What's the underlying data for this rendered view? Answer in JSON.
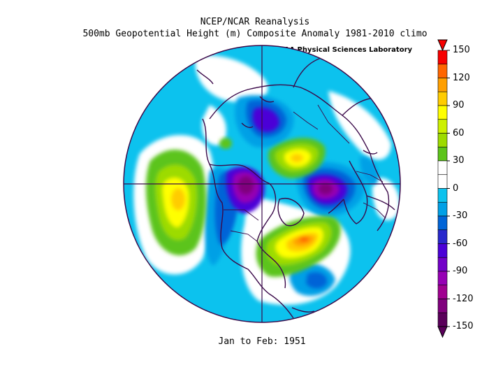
{
  "titles": {
    "line1": "NCEP/NCAR Reanalysis",
    "line2": "500mb Geopotential Height (m) Composite Anomaly 1981-2010 climo",
    "credit": "NOAA Physical Sciences Laboratory",
    "period": "Jan to Feb: 1951"
  },
  "colorbar": {
    "labels": [
      "150",
      "120",
      "90",
      "60",
      "30",
      "0",
      "-30",
      "-60",
      "-90",
      "-120",
      "-150"
    ],
    "colors": [
      "#f70000",
      "#ff6600",
      "#ff9f00",
      "#ffcc00",
      "#ffff00",
      "#cdf000",
      "#9ddb00",
      "#5cc41a",
      "#ffffff",
      "#ffffff",
      "#0cc2ee",
      "#00a0e6",
      "#0064d7",
      "#2828cc",
      "#4b00d7",
      "#7300c8",
      "#9600b4",
      "#a00090",
      "#80007d",
      "#5a005a"
    ]
  },
  "map": {
    "projection": "north polar stereographic",
    "anomaly_centers": [
      {
        "region": "Greenland / Iceland",
        "sign": "negative",
        "approx": -120
      },
      {
        "region": "Northern Europe / Scandinavia",
        "sign": "negative",
        "approx": -120
      },
      {
        "region": "Eurasian Arctic",
        "sign": "negative",
        "approx": -75
      },
      {
        "region": "North Atlantic subtropics",
        "sign": "negative",
        "approx": -60
      },
      {
        "region": "North Pacific",
        "sign": "positive",
        "approx": 90
      },
      {
        "region": "Barents / Arctic Russia",
        "sign": "positive",
        "approx": 75
      },
      {
        "region": "Eastern North America",
        "sign": "positive",
        "approx": 135
      }
    ]
  }
}
